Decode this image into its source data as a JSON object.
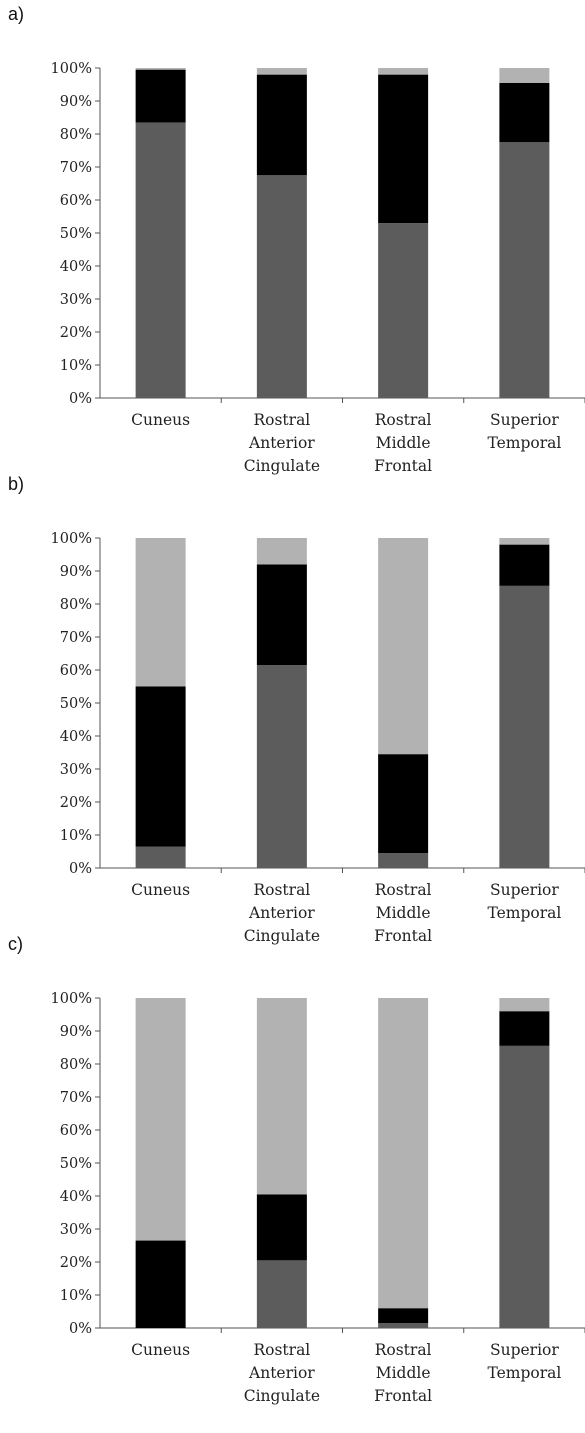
{
  "chart_data": [
    {
      "panel_label": "a)",
      "type": "bar",
      "stacked": true,
      "categories": [
        [
          "Cuneus"
        ],
        [
          "Rostral",
          "Anterior",
          "Cingulate"
        ],
        [
          "Rostral",
          "Middle",
          "Frontal"
        ],
        [
          "Superior",
          "Temporal"
        ]
      ],
      "series": [
        {
          "color": "#5c5c5c",
          "values": [
            83.5,
            67.5,
            53,
            77.5
          ]
        },
        {
          "color": "#000000",
          "values": [
            16,
            30.5,
            45,
            18
          ]
        },
        {
          "color": "#b2b2b2",
          "values": [
            0.5,
            2,
            2,
            4.5
          ]
        }
      ],
      "yticks": [
        "0%",
        "10%",
        "20%",
        "30%",
        "40%",
        "50%",
        "60%",
        "70%",
        "80%",
        "90%",
        "100%"
      ],
      "ylim": [
        0,
        100
      ],
      "grid": false,
      "legend": "none"
    },
    {
      "panel_label": "b)",
      "type": "bar",
      "stacked": true,
      "categories": [
        [
          "Cuneus"
        ],
        [
          "Rostral",
          "Anterior",
          "Cingulate"
        ],
        [
          "Rostral",
          "Middle",
          "Frontal"
        ],
        [
          "Superior",
          "Temporal"
        ]
      ],
      "series": [
        {
          "color": "#5c5c5c",
          "values": [
            6.5,
            61.5,
            4.5,
            85.5
          ]
        },
        {
          "color": "#000000",
          "values": [
            48.5,
            30.5,
            30,
            12.5
          ]
        },
        {
          "color": "#b2b2b2",
          "values": [
            45,
            8,
            65.5,
            2
          ]
        }
      ],
      "yticks": [
        "0%",
        "10%",
        "20%",
        "30%",
        "40%",
        "50%",
        "60%",
        "70%",
        "80%",
        "90%",
        "100%"
      ],
      "ylim": [
        0,
        100
      ],
      "grid": false,
      "legend": "none"
    },
    {
      "panel_label": "c)",
      "type": "bar",
      "stacked": true,
      "categories": [
        [
          "Cuneus"
        ],
        [
          "Rostral",
          "Anterior",
          "Cingulate"
        ],
        [
          "Rostral",
          "Middle",
          "Frontal"
        ],
        [
          "Superior",
          "Temporal"
        ]
      ],
      "series": [
        {
          "color": "#5c5c5c",
          "values": [
            0,
            20.5,
            1.5,
            85.5
          ]
        },
        {
          "color": "#000000",
          "values": [
            26.5,
            20,
            4.5,
            10.5
          ]
        },
        {
          "color": "#b2b2b2",
          "values": [
            73.5,
            59.5,
            94,
            4
          ]
        }
      ],
      "yticks": [
        "0%",
        "10%",
        "20%",
        "30%",
        "40%",
        "50%",
        "60%",
        "70%",
        "80%",
        "90%",
        "100%"
      ],
      "ylim": [
        0,
        100
      ],
      "grid": false,
      "legend": "none"
    }
  ]
}
